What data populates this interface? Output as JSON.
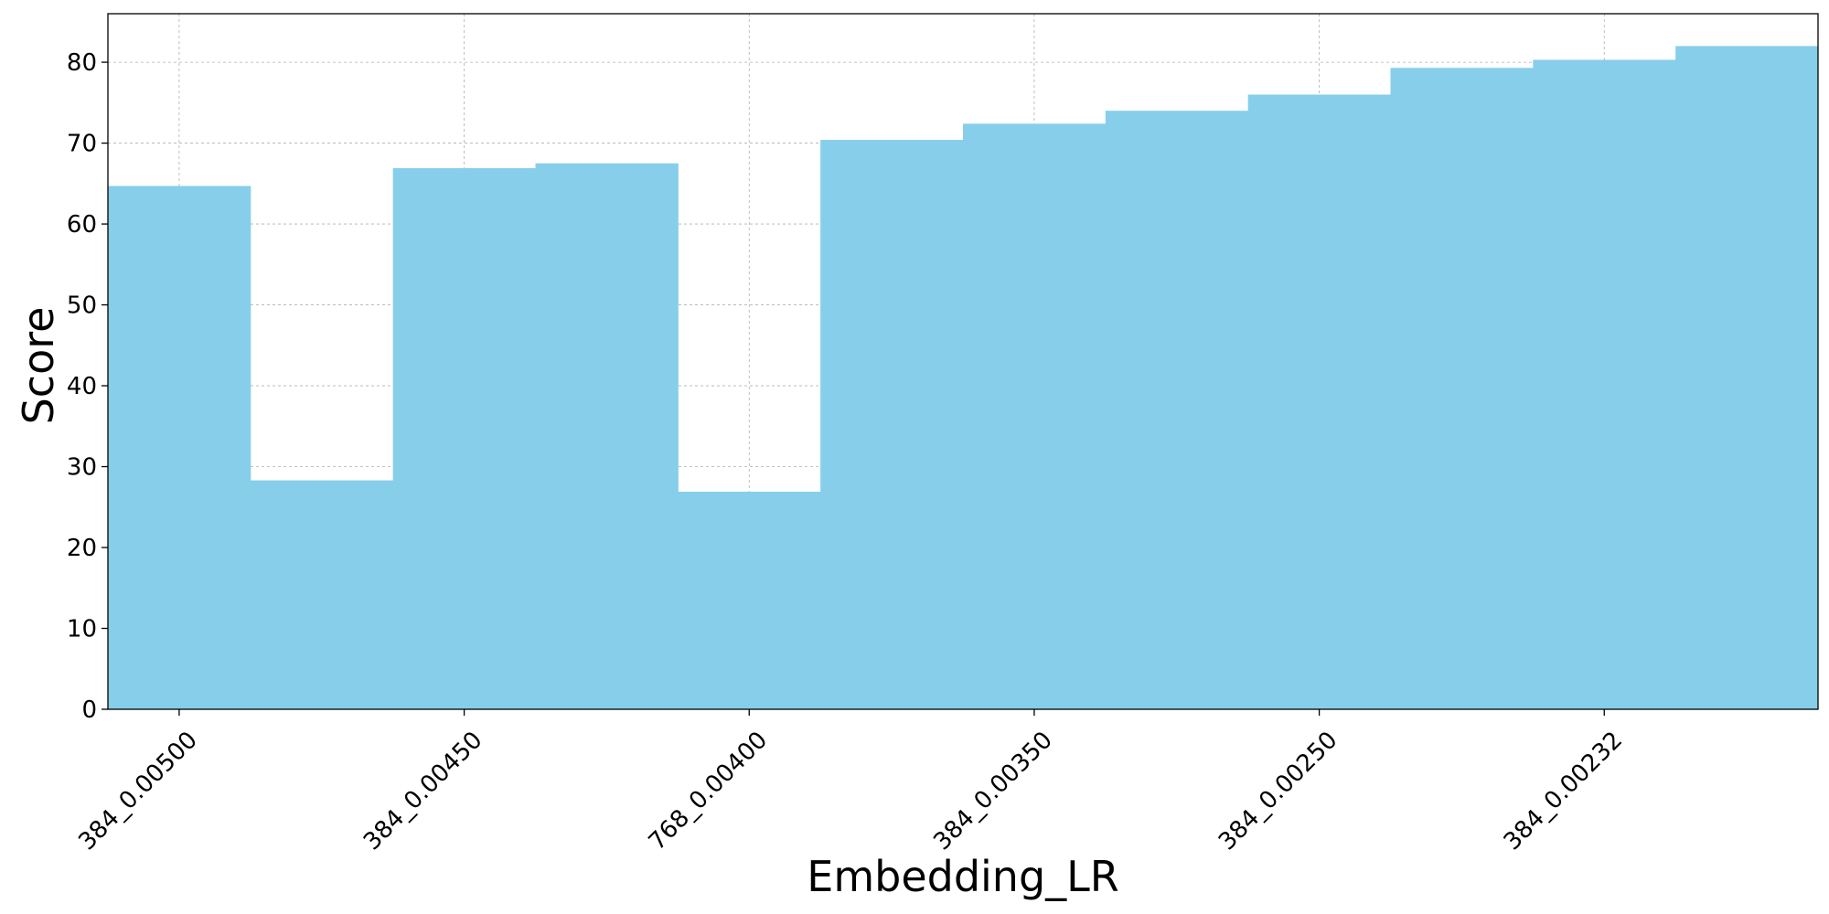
{
  "chart_data": {
    "type": "bar",
    "xlabel": "Embedding_LR",
    "ylabel": "Score",
    "ylim": [
      0,
      86
    ],
    "yticks": [
      0,
      10,
      20,
      30,
      40,
      50,
      60,
      70,
      80
    ],
    "grid": true,
    "bar_color": "#87CEEB",
    "categories": [
      "384_0.00500",
      "",
      "384_0.00450",
      "",
      "768_0.00400",
      "",
      "384_0.00350",
      "",
      "384_0.00250",
      "",
      "384_0.00232",
      ""
    ],
    "values": [
      64.7,
      28.3,
      66.9,
      67.5,
      26.9,
      70.4,
      72.4,
      74.0,
      76.0,
      79.3,
      80.3,
      82.0
    ]
  }
}
